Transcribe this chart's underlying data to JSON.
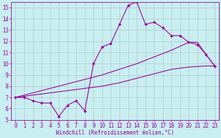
{
  "bg_color": "#c8eef0",
  "line_color": "#990099",
  "grid_color": "#b0c8cc",
  "xlabel": "Windchill (Refroidissement éolien,°C)",
  "xlim": [
    -0.5,
    23.5
  ],
  "ylim": [
    5,
    15.5
  ],
  "xticks": [
    0,
    1,
    2,
    3,
    4,
    5,
    6,
    7,
    8,
    9,
    10,
    11,
    12,
    13,
    14,
    15,
    16,
    17,
    18,
    19,
    20,
    21,
    22,
    23
  ],
  "yticks": [
    5,
    6,
    7,
    8,
    9,
    10,
    11,
    12,
    13,
    14,
    15
  ],
  "line1_x": [
    0,
    1,
    2,
    3,
    4,
    5,
    6,
    7,
    8,
    9,
    10,
    11,
    12,
    13,
    14,
    15,
    16,
    17,
    18,
    19,
    20,
    21,
    22,
    23
  ],
  "line1_y": [
    7.0,
    7.0,
    6.7,
    6.5,
    6.5,
    5.3,
    6.3,
    6.7,
    5.8,
    10.0,
    11.5,
    11.8,
    13.5,
    15.2,
    15.5,
    13.5,
    13.7,
    13.2,
    12.5,
    12.5,
    11.9,
    11.7,
    10.8,
    9.8
  ],
  "line2_x": [
    0,
    2,
    4,
    6,
    8,
    10,
    12,
    14,
    16,
    18,
    20,
    21,
    22,
    23
  ],
  "line2_y": [
    7.0,
    7.4,
    7.8,
    8.2,
    8.6,
    9.0,
    9.5,
    10.0,
    10.6,
    11.2,
    11.9,
    11.9,
    10.8,
    9.8
  ],
  "line3_x": [
    0,
    2,
    4,
    6,
    8,
    10,
    12,
    14,
    16,
    18,
    20,
    22,
    23
  ],
  "line3_y": [
    7.0,
    7.2,
    7.4,
    7.6,
    7.8,
    8.0,
    8.3,
    8.7,
    9.1,
    9.5,
    9.7,
    9.8,
    9.8
  ],
  "marker_size": 2.0,
  "line_width": 0.8,
  "tick_fontsize": 5.5,
  "xlabel_fontsize": 5.5
}
